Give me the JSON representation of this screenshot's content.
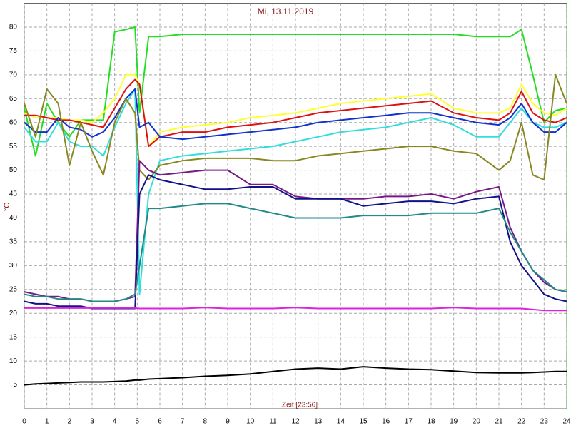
{
  "chart_data": {
    "type": "line",
    "title": "Mi, 13.11.2019",
    "y_label": "°C",
    "x_label": "Zeit [23:56]",
    "x": [
      0,
      0.5,
      1,
      1.5,
      2,
      2.5,
      3,
      3.5,
      4,
      4.5,
      4.9,
      5.1,
      5.5,
      6,
      7,
      8,
      9,
      10,
      11,
      12,
      13,
      14,
      15,
      16,
      17,
      18,
      19,
      20,
      21,
      21.5,
      22,
      22.5,
      23,
      23.5,
      24
    ],
    "xlim": [
      0,
      24
    ],
    "xticks": [
      0,
      1,
      2,
      3,
      4,
      5,
      6,
      7,
      8,
      9,
      10,
      11,
      12,
      13,
      14,
      15,
      16,
      17,
      18,
      19,
      20,
      21,
      22,
      23,
      24
    ],
    "ylim": [
      0,
      85
    ],
    "yticks": [
      5,
      10,
      15,
      20,
      25,
      30,
      35,
      40,
      45,
      50,
      55,
      60,
      65,
      70,
      75,
      80
    ],
    "grid": true,
    "series": [
      {
        "color": "#22dd22",
        "values": [
          63,
          53,
          64,
          60,
          57,
          60.5,
          60.5,
          60.5,
          79,
          79.5,
          80,
          62,
          78,
          78,
          78.5,
          78.5,
          78.5,
          78.5,
          78.5,
          78.5,
          78.5,
          78.5,
          78.5,
          78.5,
          78.5,
          78.5,
          78.5,
          78,
          78,
          78,
          79.5,
          70,
          60,
          62.5,
          63
        ]
      },
      {
        "color": "#ffff33",
        "values": [
          62,
          61,
          61,
          61,
          60.5,
          60.5,
          60,
          62,
          65,
          70,
          70,
          68,
          55,
          58,
          59,
          59.5,
          60,
          61,
          61.5,
          62,
          63,
          64,
          64.5,
          65,
          65.5,
          66,
          63,
          62,
          62,
          63,
          68,
          64,
          62,
          61.5,
          63
        ]
      },
      {
        "color": "#dd1111",
        "values": [
          61.5,
          61.5,
          61,
          60.5,
          60.5,
          60,
          59.5,
          59,
          63,
          67,
          69,
          68,
          55,
          57,
          58,
          58,
          59,
          59.5,
          60,
          61,
          62,
          62.5,
          63,
          63.5,
          64,
          64.5,
          62,
          61,
          60.5,
          62,
          66.5,
          62,
          60.5,
          60,
          61
        ]
      },
      {
        "color": "#33dddd",
        "values": [
          59,
          56,
          56,
          60,
          56,
          55,
          55,
          53,
          59,
          64,
          67,
          24,
          45,
          52,
          53,
          53.5,
          54,
          54.5,
          55,
          56,
          57,
          58,
          58.5,
          59,
          60,
          61,
          59.5,
          57,
          57,
          60,
          63,
          60,
          59,
          59,
          60
        ]
      },
      {
        "color": "#1133cc",
        "values": [
          60,
          58,
          58,
          61,
          59,
          58.5,
          57,
          58,
          61,
          65,
          67,
          59,
          60,
          57,
          56.5,
          57,
          57.5,
          58,
          58.5,
          59,
          60,
          60.5,
          61,
          61.5,
          62,
          62,
          61,
          60,
          59.5,
          61,
          64,
          60,
          58,
          58,
          60
        ]
      },
      {
        "color": "#888822",
        "values": [
          64,
          57,
          67,
          64,
          51,
          60,
          54,
          49,
          60,
          65,
          62,
          50,
          48,
          51,
          52,
          52.5,
          52.5,
          52.5,
          52,
          52,
          53,
          53.5,
          54,
          54.5,
          55,
          55,
          54,
          53.5,
          50,
          52,
          60,
          49,
          48,
          70,
          64
        ]
      },
      {
        "color": "#771a88",
        "values": [
          24.5,
          24,
          23.5,
          23.5,
          23,
          23,
          22.5,
          22.5,
          22.5,
          23,
          23.5,
          52,
          50,
          49,
          49.5,
          50,
          50,
          47,
          47,
          44.5,
          44,
          44,
          44,
          44.5,
          44.5,
          45,
          44,
          45.5,
          46.5,
          38,
          33,
          29,
          26.5,
          25,
          24.5
        ]
      },
      {
        "color": "#111188",
        "values": [
          22.5,
          22,
          22,
          21.5,
          21.5,
          21.5,
          21,
          21,
          21,
          21,
          21,
          45,
          49,
          48,
          47,
          46,
          46,
          46.5,
          46.5,
          44,
          44,
          44,
          42.5,
          43,
          43.5,
          43.5,
          43,
          44,
          44.5,
          35,
          30,
          27,
          24,
          23,
          22.5
        ]
      },
      {
        "color": "#228888",
        "values": [
          24,
          23.5,
          23.5,
          23,
          23,
          23,
          22.5,
          22.5,
          22.5,
          23,
          24,
          30,
          42,
          42,
          42.5,
          43,
          43,
          42,
          41,
          40,
          40,
          40,
          40.5,
          40.5,
          40.5,
          41,
          41,
          41,
          42,
          37,
          33,
          29,
          27,
          25,
          24.5
        ]
      },
      {
        "color": "#dd22dd",
        "values": [
          21.1,
          21.1,
          21.1,
          21.1,
          21.1,
          21.1,
          21.1,
          21.1,
          21.1,
          21.1,
          21.1,
          21,
          21,
          21,
          21,
          21.2,
          21,
          21,
          21,
          21.2,
          21,
          21,
          21,
          21,
          21,
          21,
          21.2,
          21,
          21,
          21,
          21,
          20.8,
          20.6,
          20.6,
          20.6
        ]
      },
      {
        "color": "#000000",
        "values": [
          5,
          5.2,
          5.3,
          5.4,
          5.5,
          5.6,
          5.6,
          5.6,
          5.7,
          5.8,
          6,
          6,
          6.2,
          6.3,
          6.5,
          6.8,
          7,
          7.3,
          7.8,
          8.3,
          8.5,
          8.3,
          8.8,
          8.5,
          8.3,
          8.2,
          7.9,
          7.6,
          7.5,
          7.5,
          7.5,
          7.6,
          7.7,
          7.8,
          7.8
        ]
      }
    ]
  }
}
